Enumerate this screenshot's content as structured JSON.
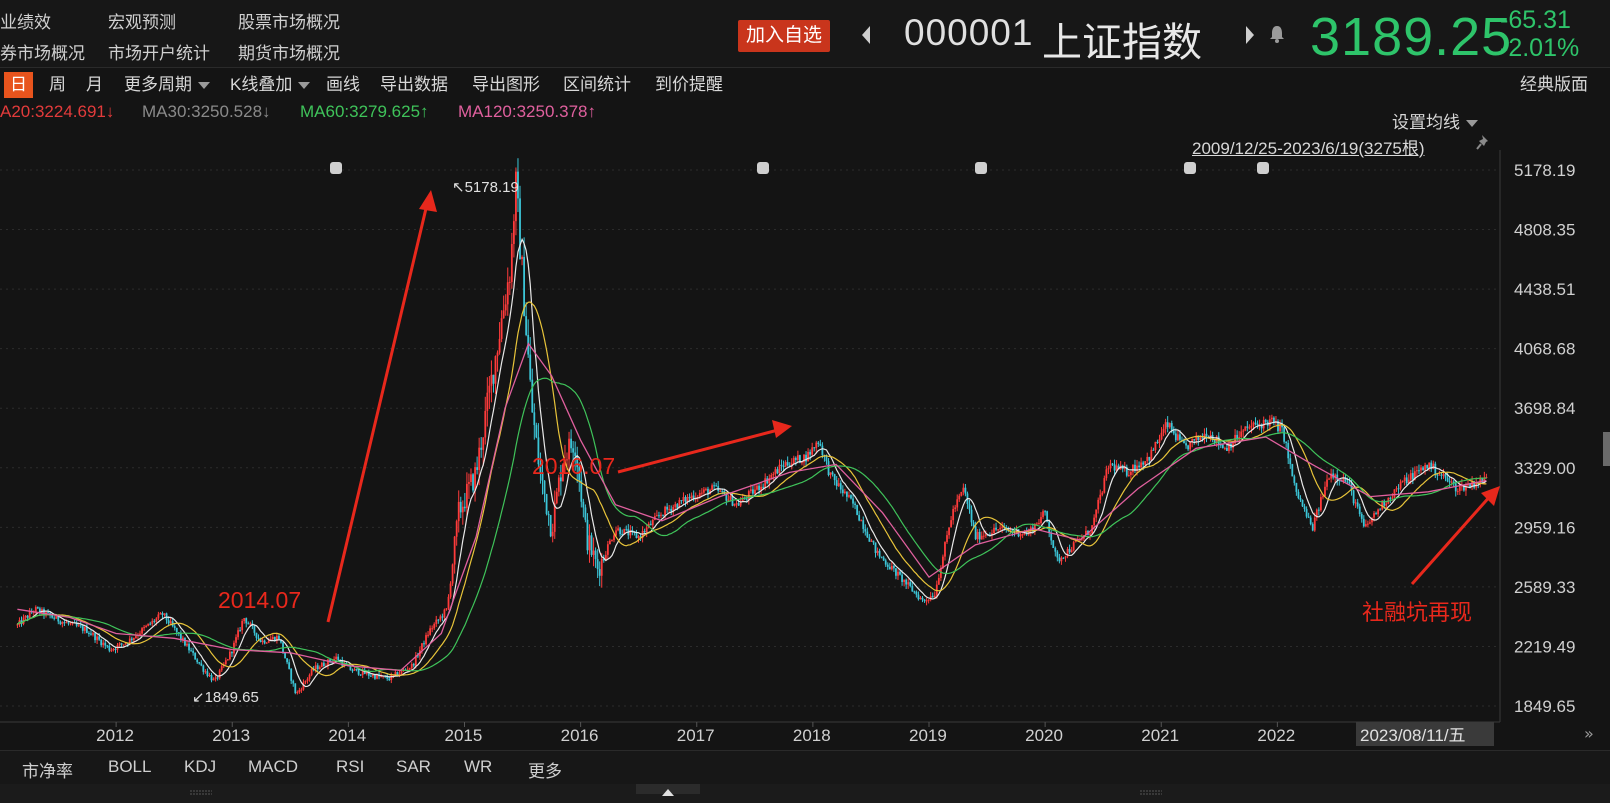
{
  "nav": {
    "row1": [
      "业绩效",
      "宏观预测",
      "股票市场概况"
    ],
    "row2": [
      "券市场概况",
      "市场开户统计",
      "期货市场概况"
    ]
  },
  "quote": {
    "add_watch": "加入自选",
    "code": "000001",
    "name": "上证指数",
    "price": "3189.25",
    "change": "-65.31",
    "change_pct": "-2.01%",
    "color_down": "#2ec46a"
  },
  "tabs": {
    "day": "日",
    "week": "周",
    "month": "月",
    "more_periods": "更多周期",
    "overlay": "K线叠加",
    "draw": "画线",
    "export_data": "导出数据",
    "export_image": "导出图形",
    "range_stats": "区间统计",
    "price_alert": "到价提醒",
    "classic": "经典版面"
  },
  "ma": {
    "ma20": "A20:3224.691↓",
    "ma30": "MA30:3250.528↓",
    "ma60": "MA60:3279.625↑",
    "ma120": "MA120:3250.378↑",
    "colors": {
      "ma20": "#e23b3b",
      "ma30": "#8a8a8a",
      "ma60": "#3fc35a",
      "ma120": "#e0609e"
    }
  },
  "settings": {
    "set_ma": "设置均线",
    "range": "2009/12/25-2023/6/19(3275根)"
  },
  "annotations": {
    "high_label": "↖5178.19",
    "low_label": "↙1849.65",
    "a2014": "2014.07",
    "a2016": "2016.07",
    "social": "社融坑再现"
  },
  "chart_data": {
    "type": "candlestick",
    "ylim": [
      1750,
      5320
    ],
    "yticks": [
      "5178.19",
      "4808.35",
      "4438.51",
      "4068.68",
      "3698.84",
      "3329.00",
      "2959.16",
      "2589.33",
      "2219.49",
      "1849.65"
    ],
    "xticks": [
      "2012",
      "2013",
      "2014",
      "2015",
      "2016",
      "2017",
      "2018",
      "2019",
      "2020",
      "2021",
      "2022"
    ],
    "cursor_date": "2023/08/11/五",
    "grid": true,
    "close_series": [
      {
        "x": 2011.15,
        "y": 2350
      },
      {
        "x": 2011.3,
        "y": 2450
      },
      {
        "x": 2011.55,
        "y": 2370
      },
      {
        "x": 2011.75,
        "y": 2320
      },
      {
        "x": 2011.95,
        "y": 2200
      },
      {
        "x": 2012.1,
        "y": 2250
      },
      {
        "x": 2012.4,
        "y": 2420
      },
      {
        "x": 2012.55,
        "y": 2280
      },
      {
        "x": 2012.75,
        "y": 2080
      },
      {
        "x": 2012.85,
        "y": 2000
      },
      {
        "x": 2013.0,
        "y": 2200
      },
      {
        "x": 2013.1,
        "y": 2400
      },
      {
        "x": 2013.25,
        "y": 2250
      },
      {
        "x": 2013.4,
        "y": 2280
      },
      {
        "x": 2013.55,
        "y": 1920
      },
      {
        "x": 2013.7,
        "y": 2080
      },
      {
        "x": 2013.9,
        "y": 2150
      },
      {
        "x": 2014.0,
        "y": 2080
      },
      {
        "x": 2014.2,
        "y": 2040
      },
      {
        "x": 2014.35,
        "y": 2020
      },
      {
        "x": 2014.55,
        "y": 2100
      },
      {
        "x": 2014.7,
        "y": 2320
      },
      {
        "x": 2014.85,
        "y": 2450
      },
      {
        "x": 2014.95,
        "y": 3050
      },
      {
        "x": 2015.1,
        "y": 3300
      },
      {
        "x": 2015.25,
        "y": 3950
      },
      {
        "x": 2015.4,
        "y": 4600
      },
      {
        "x": 2015.44,
        "y": 5100
      },
      {
        "x": 2015.52,
        "y": 4300
      },
      {
        "x": 2015.58,
        "y": 3700
      },
      {
        "x": 2015.65,
        "y": 3300
      },
      {
        "x": 2015.75,
        "y": 2950
      },
      {
        "x": 2015.85,
        "y": 3400
      },
      {
        "x": 2015.95,
        "y": 3500
      },
      {
        "x": 2016.05,
        "y": 2900
      },
      {
        "x": 2016.15,
        "y": 2700
      },
      {
        "x": 2016.3,
        "y": 2950
      },
      {
        "x": 2016.5,
        "y": 2900
      },
      {
        "x": 2016.7,
        "y": 3050
      },
      {
        "x": 2016.95,
        "y": 3150
      },
      {
        "x": 2017.15,
        "y": 3200
      },
      {
        "x": 2017.35,
        "y": 3100
      },
      {
        "x": 2017.55,
        "y": 3220
      },
      {
        "x": 2017.75,
        "y": 3350
      },
      {
        "x": 2017.95,
        "y": 3400
      },
      {
        "x": 2018.05,
        "y": 3500
      },
      {
        "x": 2018.15,
        "y": 3280
      },
      {
        "x": 2018.35,
        "y": 3100
      },
      {
        "x": 2018.55,
        "y": 2800
      },
      {
        "x": 2018.75,
        "y": 2650
      },
      {
        "x": 2018.95,
        "y": 2500
      },
      {
        "x": 2019.05,
        "y": 2550
      },
      {
        "x": 2019.2,
        "y": 3050
      },
      {
        "x": 2019.3,
        "y": 3200
      },
      {
        "x": 2019.4,
        "y": 2900
      },
      {
        "x": 2019.6,
        "y": 2950
      },
      {
        "x": 2019.85,
        "y": 2920
      },
      {
        "x": 2020.0,
        "y": 3050
      },
      {
        "x": 2020.1,
        "y": 2750
      },
      {
        "x": 2020.25,
        "y": 2850
      },
      {
        "x": 2020.4,
        "y": 2950
      },
      {
        "x": 2020.55,
        "y": 3350
      },
      {
        "x": 2020.7,
        "y": 3300
      },
      {
        "x": 2020.9,
        "y": 3400
      },
      {
        "x": 2021.05,
        "y": 3600
      },
      {
        "x": 2021.2,
        "y": 3450
      },
      {
        "x": 2021.4,
        "y": 3550
      },
      {
        "x": 2021.55,
        "y": 3450
      },
      {
        "x": 2021.75,
        "y": 3580
      },
      {
        "x": 2021.95,
        "y": 3620
      },
      {
        "x": 2022.05,
        "y": 3550
      },
      {
        "x": 2022.15,
        "y": 3200
      },
      {
        "x": 2022.3,
        "y": 2950
      },
      {
        "x": 2022.45,
        "y": 3300
      },
      {
        "x": 2022.6,
        "y": 3250
      },
      {
        "x": 2022.75,
        "y": 2950
      },
      {
        "x": 2022.9,
        "y": 3100
      },
      {
        "x": 2023.1,
        "y": 3250
      },
      {
        "x": 2023.3,
        "y": 3350
      },
      {
        "x": 2023.55,
        "y": 3200
      },
      {
        "x": 2023.8,
        "y": 3260
      }
    ],
    "ma_slow_series": [
      {
        "x": 2011.15,
        "y": 2450
      },
      {
        "x": 2011.6,
        "y": 2400
      },
      {
        "x": 2012.0,
        "y": 2300
      },
      {
        "x": 2012.5,
        "y": 2270
      },
      {
        "x": 2013.0,
        "y": 2200
      },
      {
        "x": 2013.5,
        "y": 2180
      },
      {
        "x": 2014.0,
        "y": 2100
      },
      {
        "x": 2014.45,
        "y": 2070
      },
      {
        "x": 2014.8,
        "y": 2300
      },
      {
        "x": 2015.1,
        "y": 2900
      },
      {
        "x": 2015.35,
        "y": 3700
      },
      {
        "x": 2015.55,
        "y": 4100
      },
      {
        "x": 2015.75,
        "y": 3900
      },
      {
        "x": 2016.0,
        "y": 3500
      },
      {
        "x": 2016.3,
        "y": 3100
      },
      {
        "x": 2016.7,
        "y": 3000
      },
      {
        "x": 2017.2,
        "y": 3150
      },
      {
        "x": 2017.8,
        "y": 3300
      },
      {
        "x": 2018.2,
        "y": 3350
      },
      {
        "x": 2018.6,
        "y": 3050
      },
      {
        "x": 2019.0,
        "y": 2650
      },
      {
        "x": 2019.4,
        "y": 2850
      },
      {
        "x": 2019.9,
        "y": 2950
      },
      {
        "x": 2020.3,
        "y": 2880
      },
      {
        "x": 2020.8,
        "y": 3200
      },
      {
        "x": 2021.3,
        "y": 3450
      },
      {
        "x": 2021.9,
        "y": 3520
      },
      {
        "x": 2022.3,
        "y": 3350
      },
      {
        "x": 2022.8,
        "y": 3150
      },
      {
        "x": 2023.3,
        "y": 3180
      },
      {
        "x": 2023.8,
        "y": 3250
      }
    ]
  },
  "indicators": [
    "市净率",
    "BOLL",
    "KDJ",
    "MACD",
    "RSI",
    "SAR",
    "WR",
    "更多"
  ]
}
